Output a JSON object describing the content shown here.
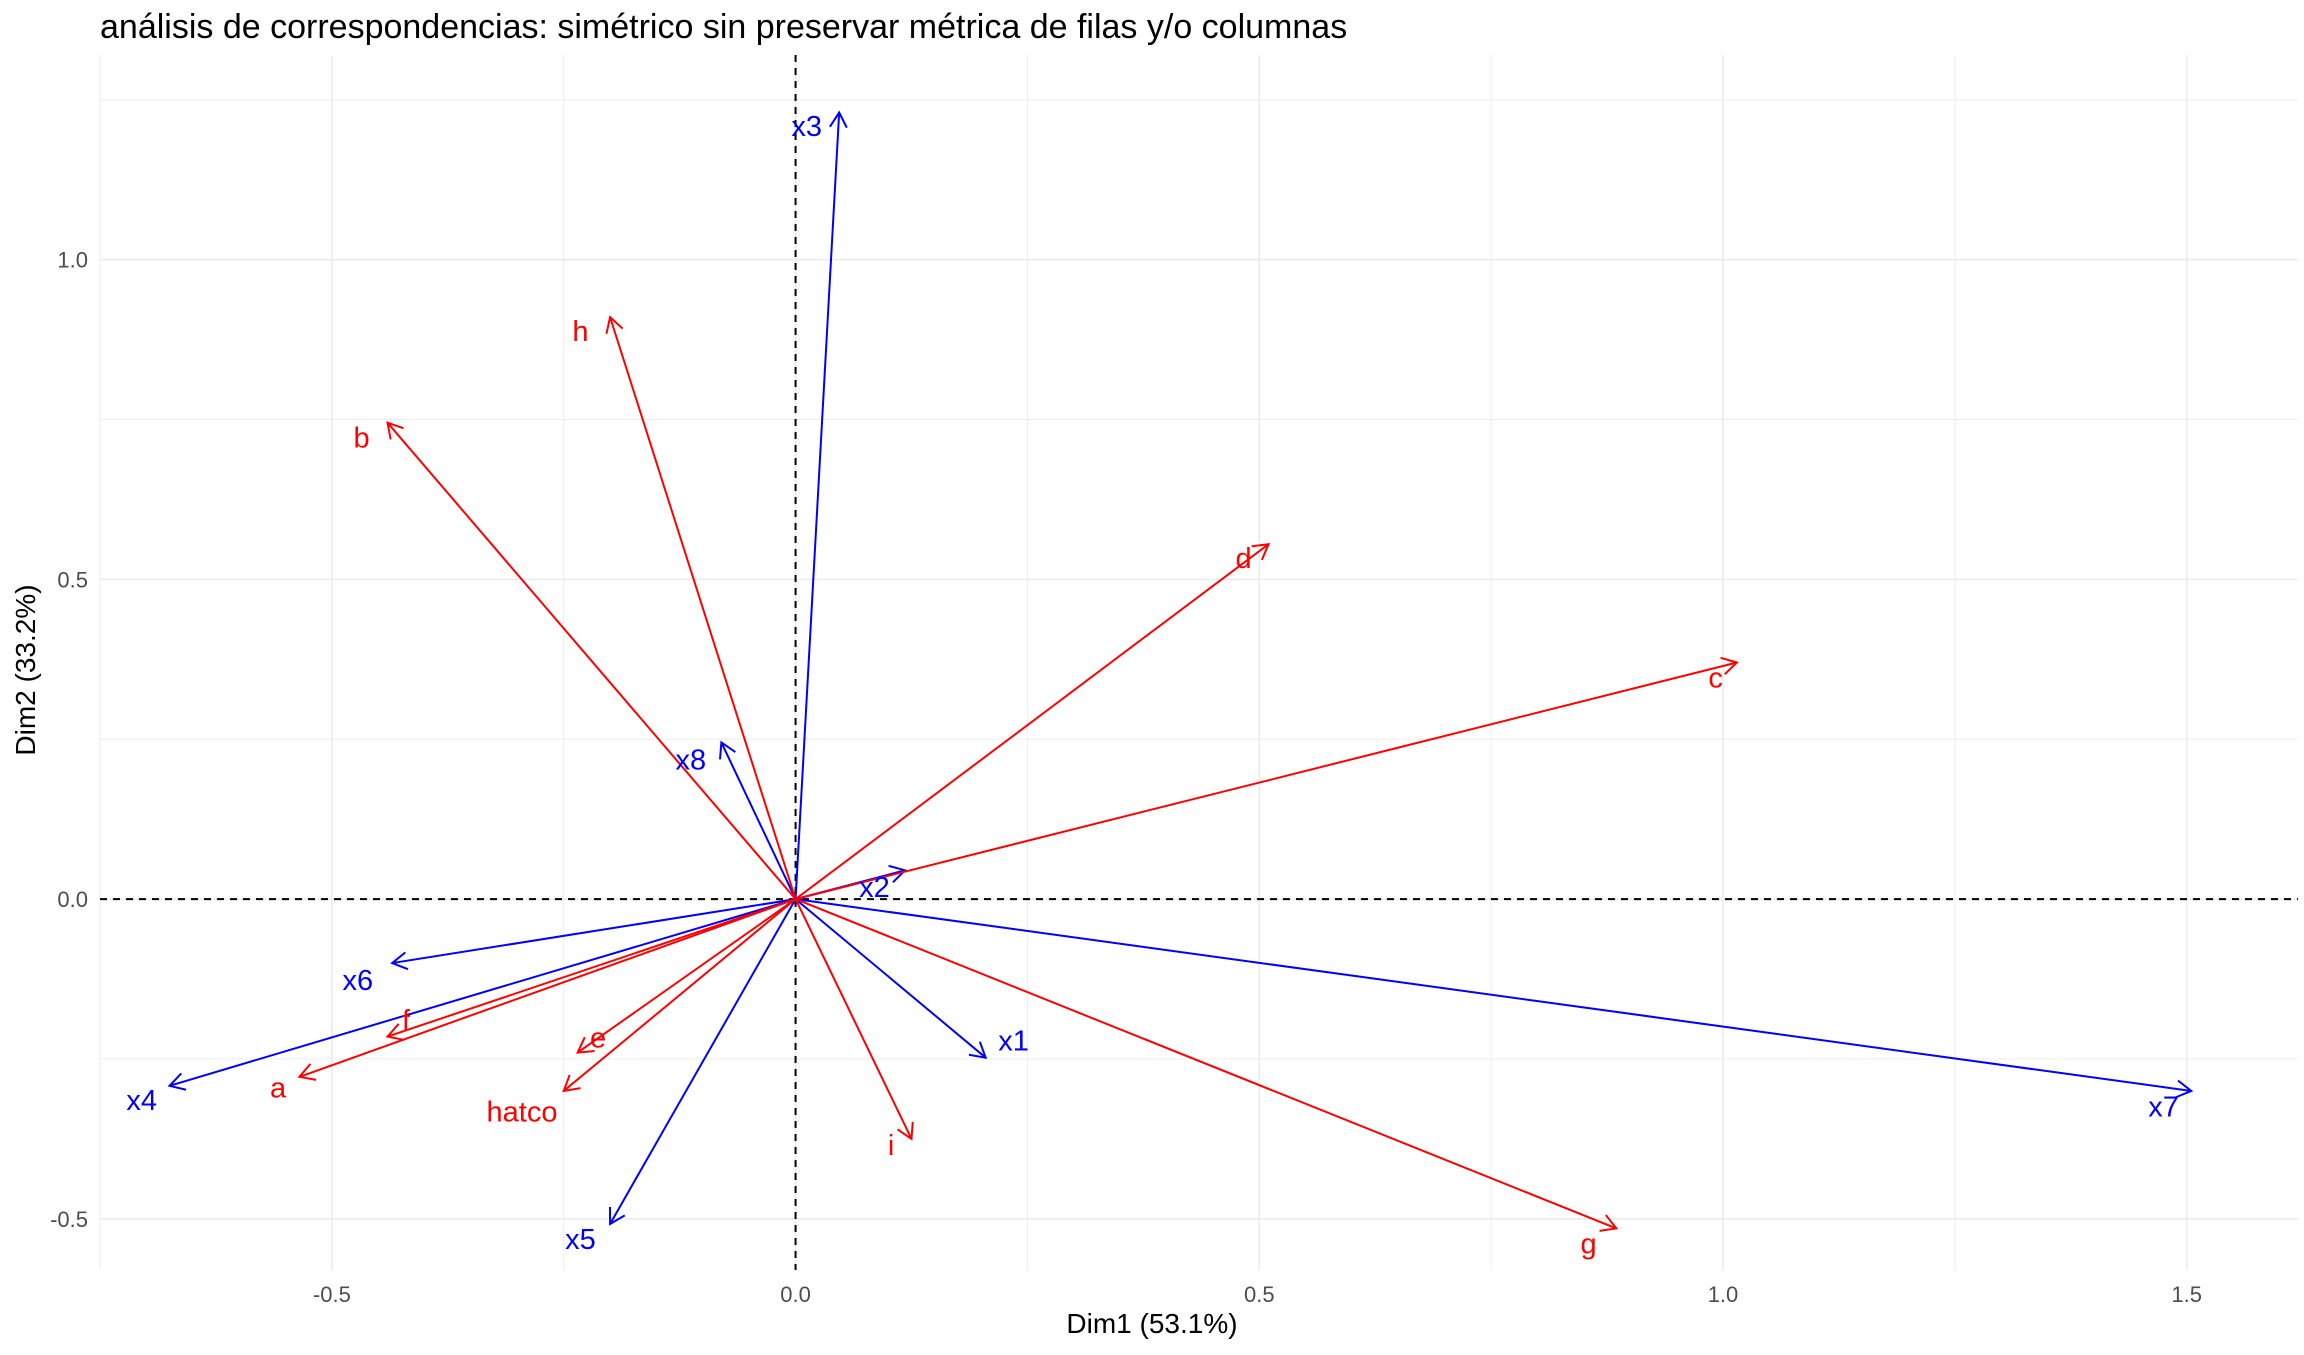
{
  "chart_data": {
    "type": "biplot",
    "title": "análisis de correspondencias: simétrico sin preservar métrica de filas y/o columnas",
    "xlabel": "Dim1 (53.1%)",
    "ylabel": "Dim2 (33.2%)",
    "xlim": [
      -0.75,
      1.62
    ],
    "ylim": [
      -0.58,
      1.32
    ],
    "x_ticks": [
      -0.5,
      0.0,
      0.5,
      1.0,
      1.5
    ],
    "x_tick_labels": [
      "-0.5",
      "0.0",
      "0.5",
      "1.0",
      "1.5"
    ],
    "y_ticks": [
      -0.5,
      0.0,
      0.5,
      1.0
    ],
    "y_tick_labels": [
      "-0.5",
      "0.0",
      "0.5",
      "1.0"
    ],
    "grid": true,
    "reference_lines": "dashed at x=0 and y=0",
    "colors": {
      "rows": "#ff0000",
      "columns": "#0000ff",
      "grid": "#ebebeb",
      "axis_text": "#4d4d4d"
    },
    "series": [
      {
        "color": "#0000ff",
        "points": [
          {
            "label": "x1",
            "x": 0.205,
            "y": -0.248,
            "lx": 0.235,
            "ly": -0.225
          },
          {
            "label": "x2",
            "x": 0.118,
            "y": 0.045,
            "lx": 0.085,
            "ly": 0.015
          },
          {
            "label": "x3",
            "x": 0.047,
            "y": 1.23,
            "lx": 0.012,
            "ly": 1.205
          },
          {
            "label": "x4",
            "x": -0.675,
            "y": -0.292,
            "lx": -0.705,
            "ly": -0.318
          },
          {
            "label": "x5",
            "x": -0.2,
            "y": -0.508,
            "lx": -0.232,
            "ly": -0.535
          },
          {
            "label": "x6",
            "x": -0.435,
            "y": -0.1,
            "lx": -0.472,
            "ly": -0.13
          },
          {
            "label": "x7",
            "x": 1.505,
            "y": -0.3,
            "lx": 1.475,
            "ly": -0.328
          },
          {
            "label": "x8",
            "x": -0.08,
            "y": 0.245,
            "lx": -0.113,
            "ly": 0.215
          }
        ]
      },
      {
        "color": "#ff0000",
        "points": [
          {
            "label": "a",
            "x": -0.535,
            "y": -0.278,
            "lx": -0.558,
            "ly": -0.298
          },
          {
            "label": "b",
            "x": -0.44,
            "y": 0.745,
            "lx": -0.468,
            "ly": 0.718
          },
          {
            "label": "c",
            "x": 1.015,
            "y": 0.37,
            "lx": 0.992,
            "ly": 0.343
          },
          {
            "label": "d",
            "x": 0.51,
            "y": 0.555,
            "lx": 0.483,
            "ly": 0.53
          },
          {
            "label": "e",
            "x": -0.235,
            "y": -0.24,
            "lx": -0.213,
            "ly": -0.22
          },
          {
            "label": "f",
            "x": -0.44,
            "y": -0.215,
            "lx": -0.42,
            "ly": -0.193
          },
          {
            "label": "g",
            "x": 0.885,
            "y": -0.515,
            "lx": 0.855,
            "ly": -0.542
          },
          {
            "label": "h",
            "x": -0.2,
            "y": 0.91,
            "lx": -0.232,
            "ly": 0.885
          },
          {
            "label": "i",
            "x": 0.125,
            "y": -0.375,
            "lx": 0.103,
            "ly": -0.388
          },
          {
            "label": "hatco",
            "x": -0.25,
            "y": -0.3,
            "lx": -0.295,
            "ly": -0.336
          }
        ]
      }
    ]
  }
}
